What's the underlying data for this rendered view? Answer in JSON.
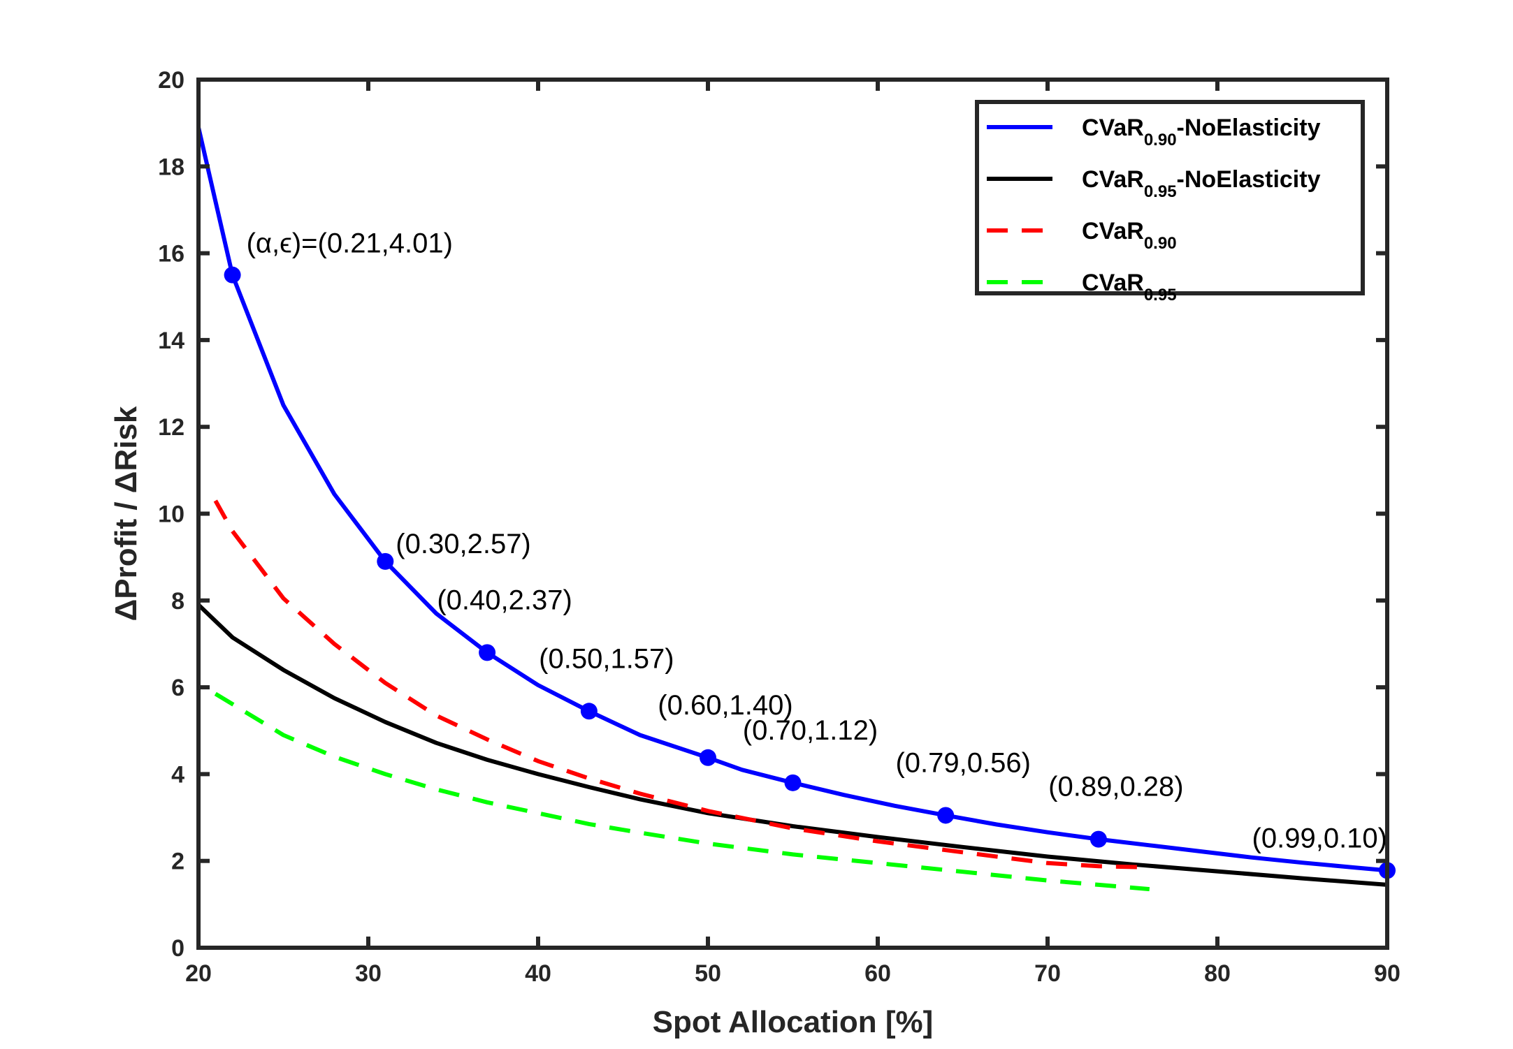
{
  "chart_data": {
    "type": "line",
    "title": "",
    "xlabel": "Spot Allocation [%]",
    "ylabel": "ΔProfit / ΔRisk",
    "xlim": [
      20,
      90
    ],
    "ylim": [
      0,
      20
    ],
    "xticks": [
      20,
      30,
      40,
      50,
      60,
      70,
      80,
      90
    ],
    "yticks": [
      0,
      2,
      4,
      6,
      8,
      10,
      12,
      14,
      16,
      18,
      20
    ],
    "grid": false,
    "legend_position": "top-right",
    "series": [
      {
        "name": "CVaR0.90-NoElasticity",
        "legend_main": "CVaR",
        "legend_sub": "0.90",
        "legend_suffix": "-NoElasticity",
        "color": "#0000ff",
        "style": "solid",
        "x": [
          20,
          22,
          25,
          28,
          31,
          34,
          37,
          40,
          43,
          46,
          50,
          52,
          55,
          58,
          61,
          64,
          67,
          70,
          73,
          76,
          79,
          82,
          85,
          88,
          90
        ],
        "y": [
          18.9,
          15.5,
          12.5,
          10.45,
          8.9,
          7.7,
          6.8,
          6.05,
          5.45,
          4.9,
          4.38,
          4.1,
          3.8,
          3.52,
          3.27,
          3.05,
          2.84,
          2.66,
          2.5,
          2.36,
          2.22,
          2.08,
          1.96,
          1.85,
          1.78
        ]
      },
      {
        "name": "CVaR0.95-NoElasticity",
        "legend_main": "CVaR",
        "legend_sub": "0.95",
        "legend_suffix": "-NoElasticity",
        "color": "#000000",
        "style": "solid",
        "x": [
          20,
          22,
          25,
          28,
          31,
          34,
          37,
          40,
          43,
          46,
          50,
          55,
          60,
          65,
          70,
          75,
          80,
          85,
          90
        ],
        "y": [
          7.9,
          7.15,
          6.4,
          5.75,
          5.2,
          4.72,
          4.33,
          4.0,
          3.7,
          3.42,
          3.1,
          2.8,
          2.55,
          2.32,
          2.1,
          1.92,
          1.76,
          1.6,
          1.45
        ]
      },
      {
        "name": "CVaR0.90",
        "legend_main": "CVaR",
        "legend_sub": "0.90",
        "legend_suffix": "",
        "color": "#ff0000",
        "style": "dashed",
        "x": [
          21,
          22,
          25,
          28,
          31,
          34,
          37,
          40,
          43,
          46,
          50,
          55,
          60,
          65,
          70,
          73,
          76
        ],
        "y": [
          10.3,
          9.6,
          8.05,
          7.0,
          6.1,
          5.35,
          4.8,
          4.3,
          3.9,
          3.55,
          3.15,
          2.75,
          2.45,
          2.2,
          1.95,
          1.88,
          1.85
        ]
      },
      {
        "name": "CVaR0.95",
        "legend_main": "CVaR",
        "legend_sub": "0.95",
        "legend_suffix": "",
        "color": "#00ff00",
        "style": "dashed",
        "x": [
          21,
          25,
          28,
          31,
          34,
          37,
          40,
          43,
          46,
          50,
          55,
          60,
          65,
          70,
          73,
          76
        ],
        "y": [
          5.85,
          4.9,
          4.4,
          4.0,
          3.65,
          3.35,
          3.1,
          2.85,
          2.65,
          2.4,
          2.15,
          1.95,
          1.75,
          1.55,
          1.45,
          1.35
        ]
      }
    ],
    "markers": [
      {
        "x": 22,
        "y": 15.5,
        "label": "(α,ϵ)=(0.21,4.01)"
      },
      {
        "x": 31,
        "y": 8.9,
        "label": "(0.30,2.57)"
      },
      {
        "x": 37,
        "y": 6.8,
        "label": "(0.40,2.37)"
      },
      {
        "x": 43,
        "y": 5.45,
        "label": "(0.50,1.57)"
      },
      {
        "x": 50,
        "y": 4.38,
        "label": "(0.60,1.40)"
      },
      {
        "x": 55,
        "y": 3.8,
        "label": "(0.70,1.12)"
      },
      {
        "x": 64,
        "y": 3.05,
        "label": "(0.79,0.56)"
      },
      {
        "x": 73,
        "y": 2.5,
        "label": "(0.89,0.28)"
      },
      {
        "x": 90,
        "y": 1.78,
        "label": "(0.99,0.10)"
      }
    ],
    "marker_color": "#0000ff"
  }
}
